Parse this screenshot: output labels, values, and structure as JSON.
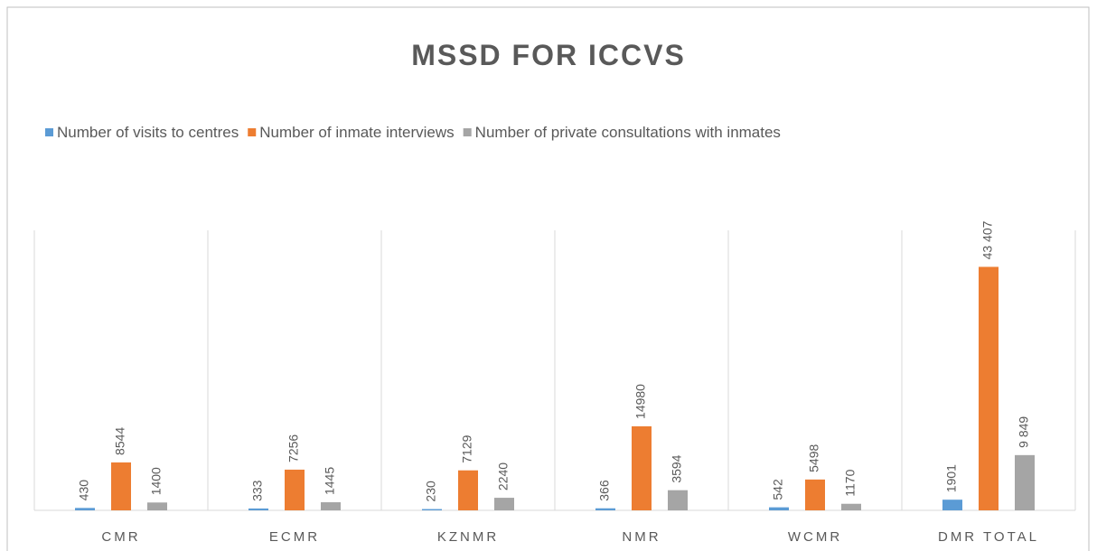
{
  "chart_data": {
    "type": "bar",
    "title": "MSSD FOR ICCVS",
    "categories": [
      "CMR",
      "ECMR",
      "KZNMR",
      "NMR",
      "WCMR",
      "DMR TOTAL"
    ],
    "series": [
      {
        "name": "Number of visits to centres",
        "color": "#5b9bd5",
        "values": [
          430,
          333,
          230,
          366,
          542,
          1901
        ],
        "value_labels": [
          "430",
          "333",
          "230",
          "366",
          "542",
          "1901"
        ]
      },
      {
        "name": "Number of inmate interviews",
        "color": "#ed7d31",
        "values": [
          8544,
          7256,
          7129,
          14980,
          5498,
          43407
        ],
        "value_labels": [
          "8544",
          "7256",
          "7129",
          "14980",
          "5498",
          "43 407"
        ]
      },
      {
        "name": "Number of private consultations with inmates",
        "color": "#a5a5a5",
        "values": [
          1400,
          1445,
          2240,
          3594,
          1170,
          9849
        ],
        "value_labels": [
          "1400",
          "1445",
          "2240",
          "3594",
          "1170",
          "9 849"
        ]
      }
    ],
    "legend": "top"
  }
}
